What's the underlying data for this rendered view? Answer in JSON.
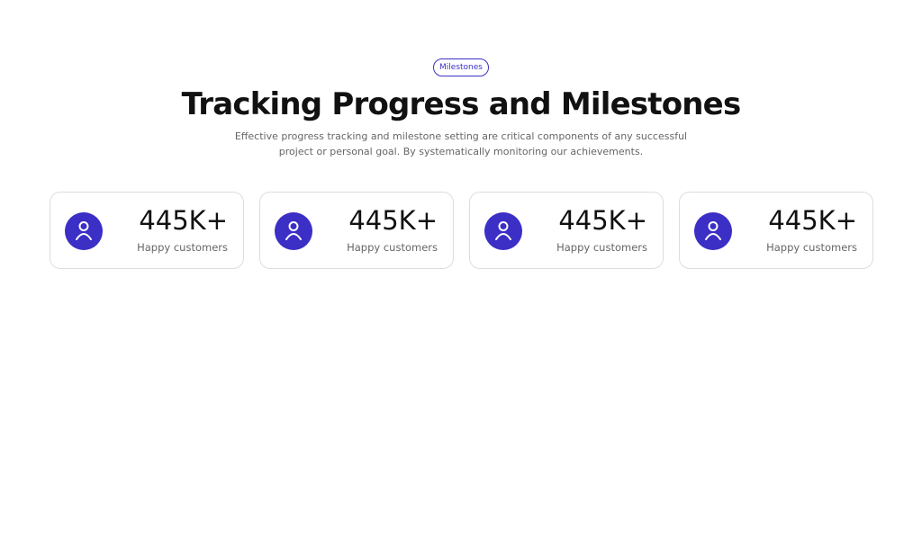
{
  "badge": "Milestones",
  "title": "Tracking Progress and Milestones",
  "description": "Effective progress tracking and milestone setting are critical components of any successful project or personal goal. By systematically monitoring our achievements.",
  "stats": [
    {
      "value": "445K+",
      "label": "Happy customers"
    },
    {
      "value": "445K+",
      "label": "Happy customers"
    },
    {
      "value": "445K+",
      "label": "Happy customers"
    },
    {
      "value": "445K+",
      "label": "Happy customers"
    }
  ]
}
